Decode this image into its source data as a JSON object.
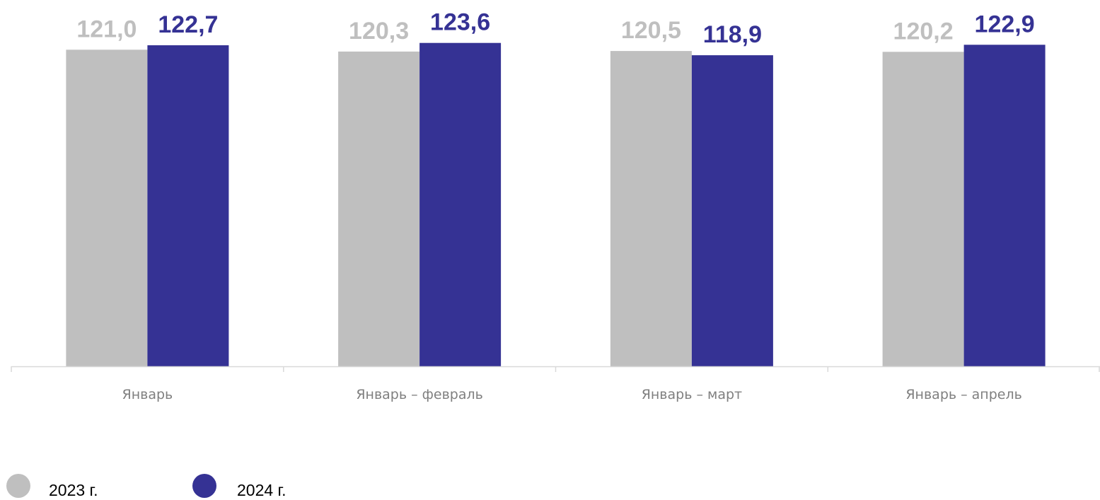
{
  "chart_data": {
    "type": "bar",
    "categories": [
      "Январь",
      "Январь – февраль",
      "Январь – март",
      "Январь – апрель"
    ],
    "series": [
      {
        "name": "2023 г.",
        "color": "#bfbfbf",
        "values": [
          121.0,
          120.3,
          120.5,
          120.2
        ],
        "labels": [
          "121,0",
          "120,3",
          "120,5",
          "120,2"
        ]
      },
      {
        "name": "2024 г.",
        "color": "#353294",
        "values": [
          122.7,
          123.6,
          118.9,
          122.9
        ],
        "labels": [
          "122,7",
          "123,6",
          "118,9",
          "122,9"
        ]
      }
    ],
    "ylim": [
      0,
      140
    ],
    "grid": false,
    "legend_position": "bottom-left"
  }
}
